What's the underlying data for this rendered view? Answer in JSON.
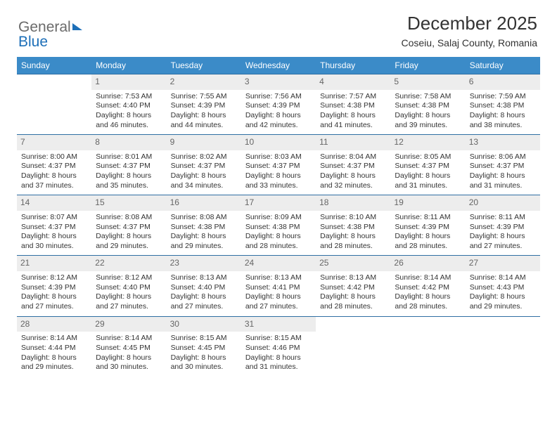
{
  "logo": {
    "part1": "General",
    "part2": "Blue"
  },
  "title": "December 2025",
  "location": "Coseiu, Salaj County, Romania",
  "colors": {
    "header_bg": "#3b8bc8",
    "header_text": "#ffffff",
    "daynum_bg": "#ededed",
    "daynum_text": "#666666",
    "row_border": "#2f6fa3",
    "body_text": "#333333",
    "logo_gray": "#6b6b6b",
    "logo_blue": "#1d6fb8",
    "background": "#ffffff"
  },
  "weekdays": [
    "Sunday",
    "Monday",
    "Tuesday",
    "Wednesday",
    "Thursday",
    "Friday",
    "Saturday"
  ],
  "weeks": [
    [
      null,
      {
        "n": "1",
        "sr": "Sunrise: 7:53 AM",
        "ss": "Sunset: 4:40 PM",
        "d1": "Daylight: 8 hours",
        "d2": "and 46 minutes."
      },
      {
        "n": "2",
        "sr": "Sunrise: 7:55 AM",
        "ss": "Sunset: 4:39 PM",
        "d1": "Daylight: 8 hours",
        "d2": "and 44 minutes."
      },
      {
        "n": "3",
        "sr": "Sunrise: 7:56 AM",
        "ss": "Sunset: 4:39 PM",
        "d1": "Daylight: 8 hours",
        "d2": "and 42 minutes."
      },
      {
        "n": "4",
        "sr": "Sunrise: 7:57 AM",
        "ss": "Sunset: 4:38 PM",
        "d1": "Daylight: 8 hours",
        "d2": "and 41 minutes."
      },
      {
        "n": "5",
        "sr": "Sunrise: 7:58 AM",
        "ss": "Sunset: 4:38 PM",
        "d1": "Daylight: 8 hours",
        "d2": "and 39 minutes."
      },
      {
        "n": "6",
        "sr": "Sunrise: 7:59 AM",
        "ss": "Sunset: 4:38 PM",
        "d1": "Daylight: 8 hours",
        "d2": "and 38 minutes."
      }
    ],
    [
      {
        "n": "7",
        "sr": "Sunrise: 8:00 AM",
        "ss": "Sunset: 4:37 PM",
        "d1": "Daylight: 8 hours",
        "d2": "and 37 minutes."
      },
      {
        "n": "8",
        "sr": "Sunrise: 8:01 AM",
        "ss": "Sunset: 4:37 PM",
        "d1": "Daylight: 8 hours",
        "d2": "and 35 minutes."
      },
      {
        "n": "9",
        "sr": "Sunrise: 8:02 AM",
        "ss": "Sunset: 4:37 PM",
        "d1": "Daylight: 8 hours",
        "d2": "and 34 minutes."
      },
      {
        "n": "10",
        "sr": "Sunrise: 8:03 AM",
        "ss": "Sunset: 4:37 PM",
        "d1": "Daylight: 8 hours",
        "d2": "and 33 minutes."
      },
      {
        "n": "11",
        "sr": "Sunrise: 8:04 AM",
        "ss": "Sunset: 4:37 PM",
        "d1": "Daylight: 8 hours",
        "d2": "and 32 minutes."
      },
      {
        "n": "12",
        "sr": "Sunrise: 8:05 AM",
        "ss": "Sunset: 4:37 PM",
        "d1": "Daylight: 8 hours",
        "d2": "and 31 minutes."
      },
      {
        "n": "13",
        "sr": "Sunrise: 8:06 AM",
        "ss": "Sunset: 4:37 PM",
        "d1": "Daylight: 8 hours",
        "d2": "and 31 minutes."
      }
    ],
    [
      {
        "n": "14",
        "sr": "Sunrise: 8:07 AM",
        "ss": "Sunset: 4:37 PM",
        "d1": "Daylight: 8 hours",
        "d2": "and 30 minutes."
      },
      {
        "n": "15",
        "sr": "Sunrise: 8:08 AM",
        "ss": "Sunset: 4:37 PM",
        "d1": "Daylight: 8 hours",
        "d2": "and 29 minutes."
      },
      {
        "n": "16",
        "sr": "Sunrise: 8:08 AM",
        "ss": "Sunset: 4:38 PM",
        "d1": "Daylight: 8 hours",
        "d2": "and 29 minutes."
      },
      {
        "n": "17",
        "sr": "Sunrise: 8:09 AM",
        "ss": "Sunset: 4:38 PM",
        "d1": "Daylight: 8 hours",
        "d2": "and 28 minutes."
      },
      {
        "n": "18",
        "sr": "Sunrise: 8:10 AM",
        "ss": "Sunset: 4:38 PM",
        "d1": "Daylight: 8 hours",
        "d2": "and 28 minutes."
      },
      {
        "n": "19",
        "sr": "Sunrise: 8:11 AM",
        "ss": "Sunset: 4:39 PM",
        "d1": "Daylight: 8 hours",
        "d2": "and 28 minutes."
      },
      {
        "n": "20",
        "sr": "Sunrise: 8:11 AM",
        "ss": "Sunset: 4:39 PM",
        "d1": "Daylight: 8 hours",
        "d2": "and 27 minutes."
      }
    ],
    [
      {
        "n": "21",
        "sr": "Sunrise: 8:12 AM",
        "ss": "Sunset: 4:39 PM",
        "d1": "Daylight: 8 hours",
        "d2": "and 27 minutes."
      },
      {
        "n": "22",
        "sr": "Sunrise: 8:12 AM",
        "ss": "Sunset: 4:40 PM",
        "d1": "Daylight: 8 hours",
        "d2": "and 27 minutes."
      },
      {
        "n": "23",
        "sr": "Sunrise: 8:13 AM",
        "ss": "Sunset: 4:40 PM",
        "d1": "Daylight: 8 hours",
        "d2": "and 27 minutes."
      },
      {
        "n": "24",
        "sr": "Sunrise: 8:13 AM",
        "ss": "Sunset: 4:41 PM",
        "d1": "Daylight: 8 hours",
        "d2": "and 27 minutes."
      },
      {
        "n": "25",
        "sr": "Sunrise: 8:13 AM",
        "ss": "Sunset: 4:42 PM",
        "d1": "Daylight: 8 hours",
        "d2": "and 28 minutes."
      },
      {
        "n": "26",
        "sr": "Sunrise: 8:14 AM",
        "ss": "Sunset: 4:42 PM",
        "d1": "Daylight: 8 hours",
        "d2": "and 28 minutes."
      },
      {
        "n": "27",
        "sr": "Sunrise: 8:14 AM",
        "ss": "Sunset: 4:43 PM",
        "d1": "Daylight: 8 hours",
        "d2": "and 29 minutes."
      }
    ],
    [
      {
        "n": "28",
        "sr": "Sunrise: 8:14 AM",
        "ss": "Sunset: 4:44 PM",
        "d1": "Daylight: 8 hours",
        "d2": "and 29 minutes."
      },
      {
        "n": "29",
        "sr": "Sunrise: 8:14 AM",
        "ss": "Sunset: 4:45 PM",
        "d1": "Daylight: 8 hours",
        "d2": "and 30 minutes."
      },
      {
        "n": "30",
        "sr": "Sunrise: 8:15 AM",
        "ss": "Sunset: 4:45 PM",
        "d1": "Daylight: 8 hours",
        "d2": "and 30 minutes."
      },
      {
        "n": "31",
        "sr": "Sunrise: 8:15 AM",
        "ss": "Sunset: 4:46 PM",
        "d1": "Daylight: 8 hours",
        "d2": "and 31 minutes."
      },
      null,
      null,
      null
    ]
  ]
}
